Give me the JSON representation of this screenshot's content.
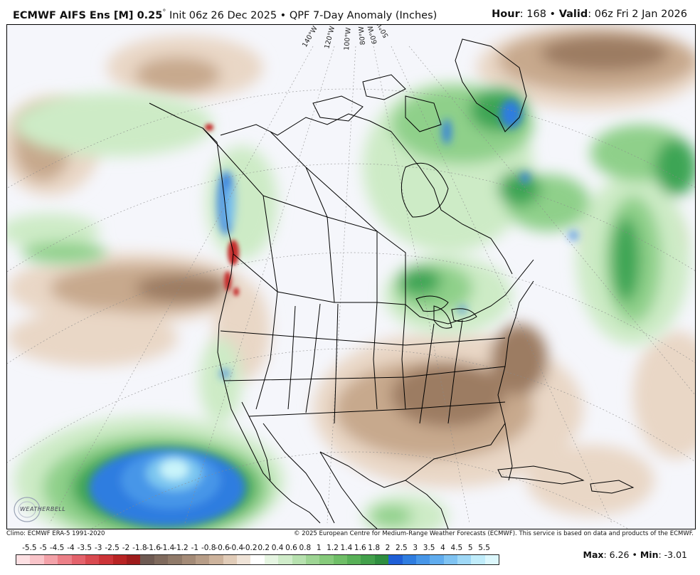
{
  "header": {
    "model": "ECMWF AIFS Ens [M] 0.25",
    "degree": "°",
    "init_label": "Init 06z 26 Dec 2025",
    "separator": "•",
    "product": "QPF 7-Day Anomaly (Inches)",
    "hour_label": "Hour",
    "hour_value": ": 168",
    "valid_label": "Valid",
    "valid_value": ": 06z Fri 2 Jan 2026"
  },
  "map": {
    "longitude_labels": [
      "140°W",
      "120°W",
      "100°W",
      "80°W",
      "60°W",
      "50°W"
    ],
    "colors": {
      "ocean_base": "#f5f6fb",
      "dry_light": "#e9d7c6",
      "dry_mid": "#c7a98d",
      "dry_dark": "#9c7c62",
      "wet_light": "#cdebc6",
      "wet_mid": "#8fd08a",
      "wet_dark": "#3ea555",
      "blue_mid": "#2f7de0",
      "blue_light": "#7cc6f0",
      "cyan": "#c9f4fa",
      "red": "#c42a2a",
      "boundary": "#000000"
    }
  },
  "footer": {
    "climo": "Climo: ECMWF ERA-5 1991-2020",
    "copyright": "© 2025 European Centre for Medium-Range Weather Forecasts (ECMWF). This service is based on data and products of the ECMWF."
  },
  "logo": {
    "text": "WEATHERBELL"
  },
  "legend": {
    "labels": [
      "-5.5",
      "-5",
      "-4.5",
      "-4",
      "-3.5",
      "-3",
      "-2.5",
      "-2",
      "-1.8",
      "-1.6",
      "-1.4",
      "-1.2",
      "-1",
      "-0.8",
      "-0.6",
      "-0.4",
      "-0.2",
      "0.2",
      "0.4",
      "0.6",
      "0.8",
      "1",
      "1.2",
      "1.4",
      "1.6",
      "1.8",
      "2",
      "2.5",
      "3",
      "3.5",
      "4",
      "4.5",
      "5",
      "5.5"
    ],
    "colors": [
      "#fde0e3",
      "#f9c4c9",
      "#f3a2a9",
      "#ec8088",
      "#e4636c",
      "#d94a50",
      "#cc3438",
      "#b82424",
      "#9e1c1c",
      "#6e5a52",
      "#7f6a5d",
      "#907a69",
      "#a48b77",
      "#b79d87",
      "#cdb39c",
      "#e1ccb8",
      "#f0e4d8",
      "#ffffff",
      "#e6f5e2",
      "#d0ecca",
      "#b7e1af",
      "#9ed594",
      "#86ca7b",
      "#6fbe67",
      "#58b057",
      "#42a04b",
      "#2f8e40",
      "#1f5fd6",
      "#2f7de0",
      "#4796e8",
      "#60acee",
      "#7fc3f2",
      "#9fd8f6",
      "#c0ecfa",
      "#dcf7fc"
    ]
  },
  "stats": {
    "max_label": "Max",
    "max_value": ": 6.26",
    "separator": "•",
    "min_label": "Min",
    "min_value": ": -3.01"
  }
}
